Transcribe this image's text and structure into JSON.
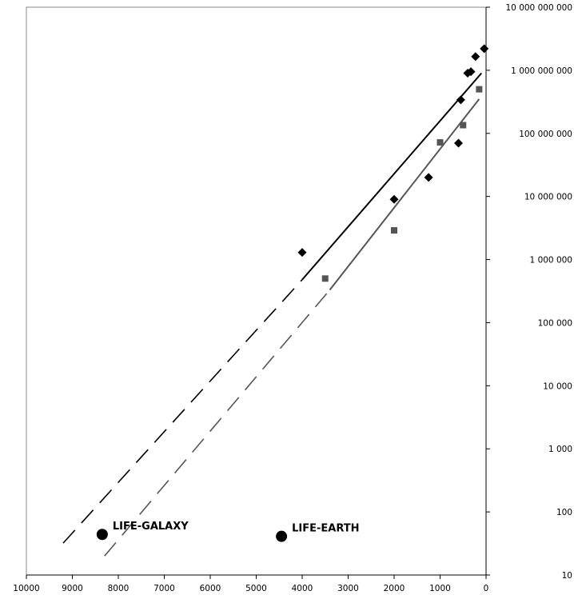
{
  "chart_data": {
    "type": "scatter",
    "title": "",
    "xlabel": "",
    "ylabel": "",
    "x_axis": {
      "range": [
        10000,
        0
      ],
      "reversed": true,
      "ticks": [
        10000,
        9000,
        8000,
        7000,
        6000,
        5000,
        4000,
        3000,
        2000,
        1000,
        0
      ],
      "tick_labels": [
        "10000",
        "9000",
        "8000",
        "7000",
        "6000",
        "5000",
        "4000",
        "3000",
        "2000",
        "1000",
        "0"
      ]
    },
    "y_axis": {
      "scale": "log",
      "position": "right",
      "range": [
        10,
        10000000000
      ],
      "ticks": [
        10,
        100,
        1000,
        10000,
        100000,
        1000000,
        10000000,
        100000000,
        1000000000,
        10000000000
      ],
      "tick_labels": [
        "10",
        "100",
        "1 000",
        "10 000",
        "100 000",
        "1 000 000",
        "10 000 000",
        "100 000 000",
        "1 000 000 000",
        "10 000 000 000"
      ]
    },
    "grid": false,
    "series": [
      {
        "marker": "diamond",
        "color": "#000000",
        "points": [
          {
            "x": 4000,
            "y": 1300000
          },
          {
            "x": 2000,
            "y": 9000000
          },
          {
            "x": 1250,
            "y": 20000000
          },
          {
            "x": 600,
            "y": 70000000
          },
          {
            "x": 550,
            "y": 340000000
          },
          {
            "x": 400,
            "y": 900000000
          },
          {
            "x": 330,
            "y": 950000000
          },
          {
            "x": 230,
            "y": 1650000000
          },
          {
            "x": 40,
            "y": 2200000000
          }
        ]
      },
      {
        "marker": "square",
        "color": "#555555",
        "points": [
          {
            "x": 3500,
            "y": 500000
          },
          {
            "x": 2000,
            "y": 2900000
          },
          {
            "x": 1000,
            "y": 72000000
          },
          {
            "x": 500,
            "y": 135000000
          },
          {
            "x": 150,
            "y": 500000000
          }
        ]
      }
    ],
    "trendlines": [
      {
        "color": "#000000",
        "solid": {
          "from": {
            "x": 4000,
            "y": 480000
          },
          "to": {
            "x": 100,
            "y": 900000000
          }
        },
        "dashed": {
          "from": {
            "x": 9200,
            "y": 32
          },
          "to": {
            "x": 4000,
            "y": 480000
          }
        }
      },
      {
        "color": "#555555",
        "solid": {
          "from": {
            "x": 3400,
            "y": 330000
          },
          "to": {
            "x": 150,
            "y": 350000000
          }
        },
        "dashed": {
          "from": {
            "x": 8300,
            "y": 20
          },
          "to": {
            "x": 3400,
            "y": 330000
          }
        }
      }
    ],
    "annotations": [
      {
        "label": "LIFE-GALAXY",
        "x": 8350,
        "y": 44
      },
      {
        "label": "LIFE-EARTH",
        "x": 4450,
        "y": 41
      }
    ]
  }
}
